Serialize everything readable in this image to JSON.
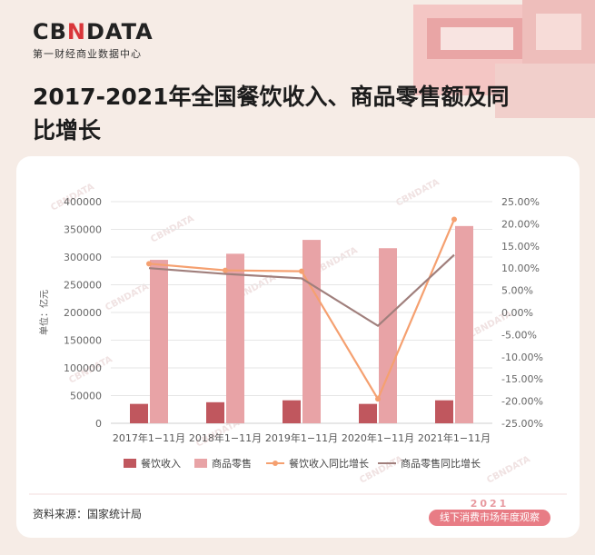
{
  "logo": {
    "main_pre": "CB",
    "main_n": "N",
    "main_post": "DATA",
    "subtitle": "第一财经商业数据中心"
  },
  "title": "2017-2021年全国餐饮收入、商品零售额及同比增长",
  "ylabel_left": "单位：亿元",
  "source": "资料来源：国家统计局",
  "badge": {
    "year": "2021",
    "text": "线下消费市场年度观察"
  },
  "watermark": "CBNDATA",
  "colors": {
    "restaurant_bar": "#c0575e",
    "retail_bar": "#e8a3a6",
    "restaurant_line": "#f5a070",
    "retail_line": "#a07f7c",
    "accent": "#d9363a"
  },
  "chart_data": {
    "type": "bar",
    "categories": [
      "2017年1−11月",
      "2018年1−11月",
      "2019年1−11月",
      "2020年1−11月",
      "2021年1−11月"
    ],
    "series": [
      {
        "name": "餐饮收入",
        "type": "bar",
        "axis": "left",
        "values": [
          35000,
          38000,
          41500,
          35000,
          41500
        ]
      },
      {
        "name": "商品零售",
        "type": "bar",
        "axis": "left",
        "values": [
          295000,
          306000,
          331000,
          316000,
          356000
        ]
      },
      {
        "name": "餐饮收入同比增长",
        "type": "line",
        "axis": "right",
        "values": [
          0.11,
          0.095,
          0.093,
          -0.195,
          0.21
        ]
      },
      {
        "name": "商品零售同比增长",
        "type": "line",
        "axis": "right",
        "values": [
          0.1,
          0.087,
          0.077,
          -0.03,
          0.13
        ]
      }
    ],
    "ylim_left": [
      0,
      400000
    ],
    "yticks_left": [
      "0",
      "50000",
      "100000",
      "150000",
      "200000",
      "250000",
      "300000",
      "350000",
      "400000"
    ],
    "ylim_right": [
      -0.25,
      0.25
    ],
    "yticks_right": [
      "-25.00%",
      "-20.00%",
      "-15.00%",
      "-10.00%",
      "-5.00%",
      "0.00%",
      "5.00%",
      "10.00%",
      "15.00%",
      "20.00%",
      "25.00%"
    ],
    "grid": true,
    "legend": "bottom"
  }
}
